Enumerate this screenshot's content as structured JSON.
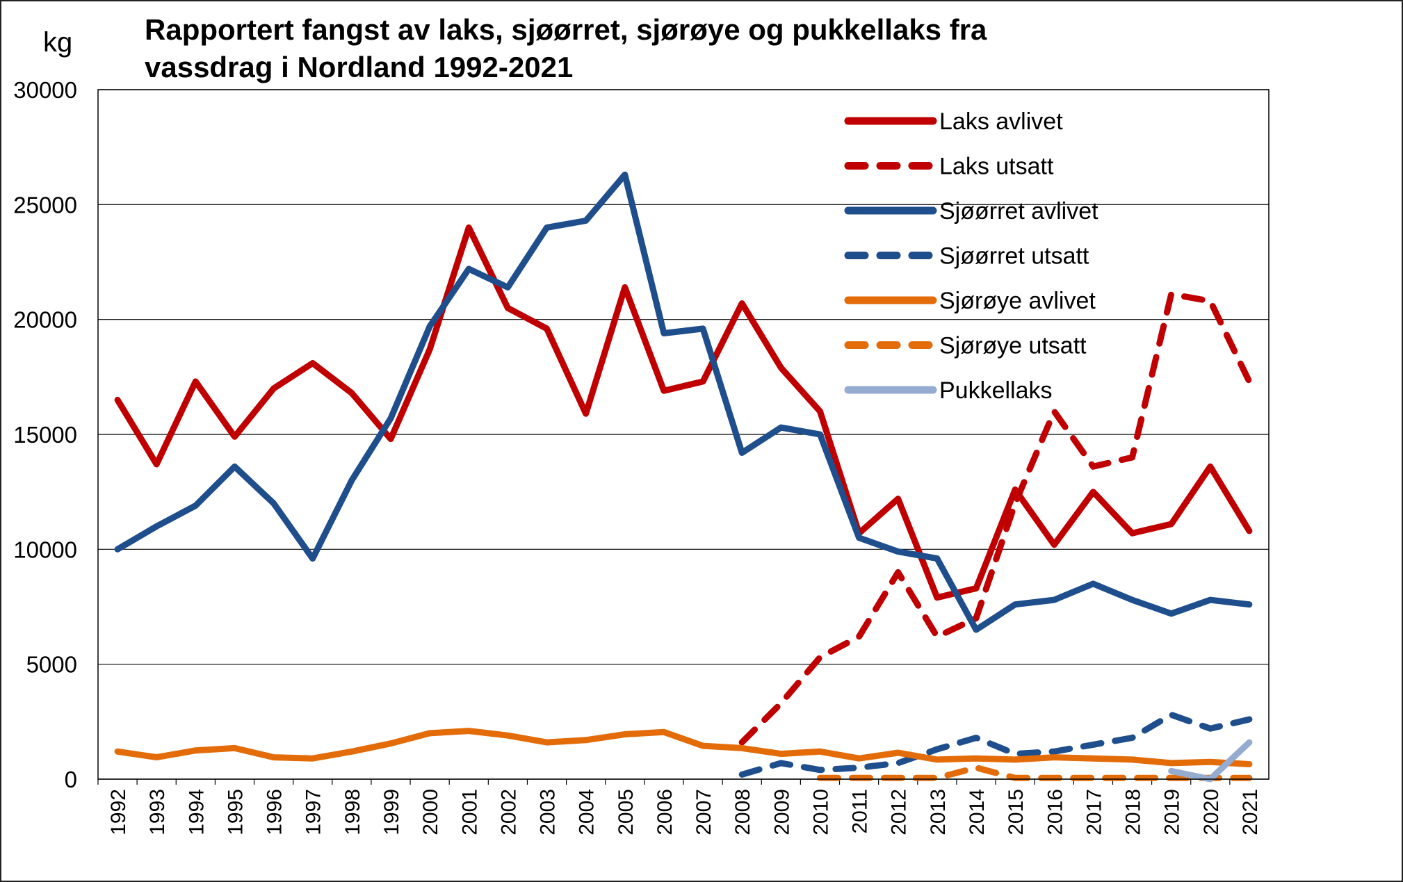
{
  "chart_data": {
    "type": "line",
    "title_line1": "Rapportert fangst av laks, sjøørret, sjørøye og pukkellaks fra",
    "title_line2": "vassdrag i Nordland 1992-2021",
    "ylabel": "kg",
    "xlabel": "",
    "ylim": [
      0,
      30000
    ],
    "yticks": [
      "0",
      "5000",
      "10000",
      "15000",
      "20000",
      "25000",
      "30000"
    ],
    "grid": "horizontal",
    "legend_position": "top-right",
    "x": [
      "1992",
      "1993",
      "1994",
      "1995",
      "1996",
      "1997",
      "1998",
      "1999",
      "2000",
      "2001",
      "2002",
      "2003",
      "2004",
      "2005",
      "2006",
      "2007",
      "2008",
      "2009",
      "2010",
      "2011",
      "2012",
      "2013",
      "2014",
      "2015",
      "2016",
      "2017",
      "2018",
      "2019",
      "2020",
      "2021"
    ],
    "series": [
      {
        "name": "Laks avlivet",
        "color": "#c00000",
        "style": "solid",
        "values": [
          16500,
          13700,
          17300,
          14900,
          17000,
          18100,
          16800,
          14800,
          18700,
          24000,
          20500,
          19600,
          15900,
          21400,
          16900,
          17300,
          20700,
          17900,
          16000,
          10700,
          12200,
          7900,
          8300,
          12600,
          10200,
          12500,
          10700,
          11100,
          13600,
          10800
        ]
      },
      {
        "name": "Laks utsatt",
        "color": "#c00000",
        "style": "dashed",
        "values": [
          null,
          null,
          null,
          null,
          null,
          null,
          null,
          null,
          null,
          null,
          null,
          null,
          null,
          null,
          null,
          null,
          1600,
          3300,
          5300,
          6200,
          9000,
          6200,
          7000,
          12000,
          16000,
          13600,
          14000,
          21100,
          20800,
          17300
        ]
      },
      {
        "name": "Sjøørret avlivet",
        "color": "#1f4e8c",
        "style": "solid",
        "values": [
          10000,
          11000,
          11900,
          13600,
          12000,
          9600,
          13000,
          15700,
          19700,
          22200,
          21400,
          24000,
          24300,
          26300,
          19400,
          19600,
          14200,
          15300,
          15000,
          10500,
          9900,
          9600,
          6500,
          7600,
          7800,
          8500,
          7800,
          7200,
          7800,
          7600
        ]
      },
      {
        "name": "Sjøørret utsatt",
        "color": "#1f4e8c",
        "style": "dashed",
        "values": [
          null,
          null,
          null,
          null,
          null,
          null,
          null,
          null,
          null,
          null,
          null,
          null,
          null,
          null,
          null,
          null,
          200,
          700,
          400,
          500,
          700,
          1300,
          1800,
          1100,
          1200,
          1500,
          1800,
          2800,
          2200,
          2600
        ]
      },
      {
        "name": "Sjørøye avlivet",
        "color": "#e36c09",
        "style": "solid",
        "values": [
          1200,
          950,
          1250,
          1350,
          950,
          900,
          1200,
          1550,
          2000,
          2100,
          1900,
          1600,
          1700,
          1950,
          2050,
          1450,
          1350,
          1100,
          1200,
          900,
          1150,
          850,
          900,
          850,
          950,
          900,
          850,
          700,
          750,
          650
        ]
      },
      {
        "name": "Sjørøye utsatt",
        "color": "#e36c09",
        "style": "dashed",
        "values": [
          null,
          null,
          null,
          null,
          null,
          null,
          null,
          null,
          null,
          null,
          null,
          null,
          null,
          null,
          null,
          null,
          null,
          null,
          50,
          50,
          50,
          50,
          500,
          50,
          50,
          50,
          50,
          50,
          50,
          50
        ]
      },
      {
        "name": "Pukkellaks",
        "color": "#95abd0",
        "style": "solid",
        "values": [
          null,
          null,
          null,
          null,
          null,
          null,
          null,
          null,
          null,
          null,
          null,
          null,
          null,
          null,
          null,
          null,
          null,
          null,
          null,
          null,
          null,
          null,
          null,
          null,
          null,
          null,
          null,
          350,
          0,
          1600
        ]
      }
    ]
  }
}
